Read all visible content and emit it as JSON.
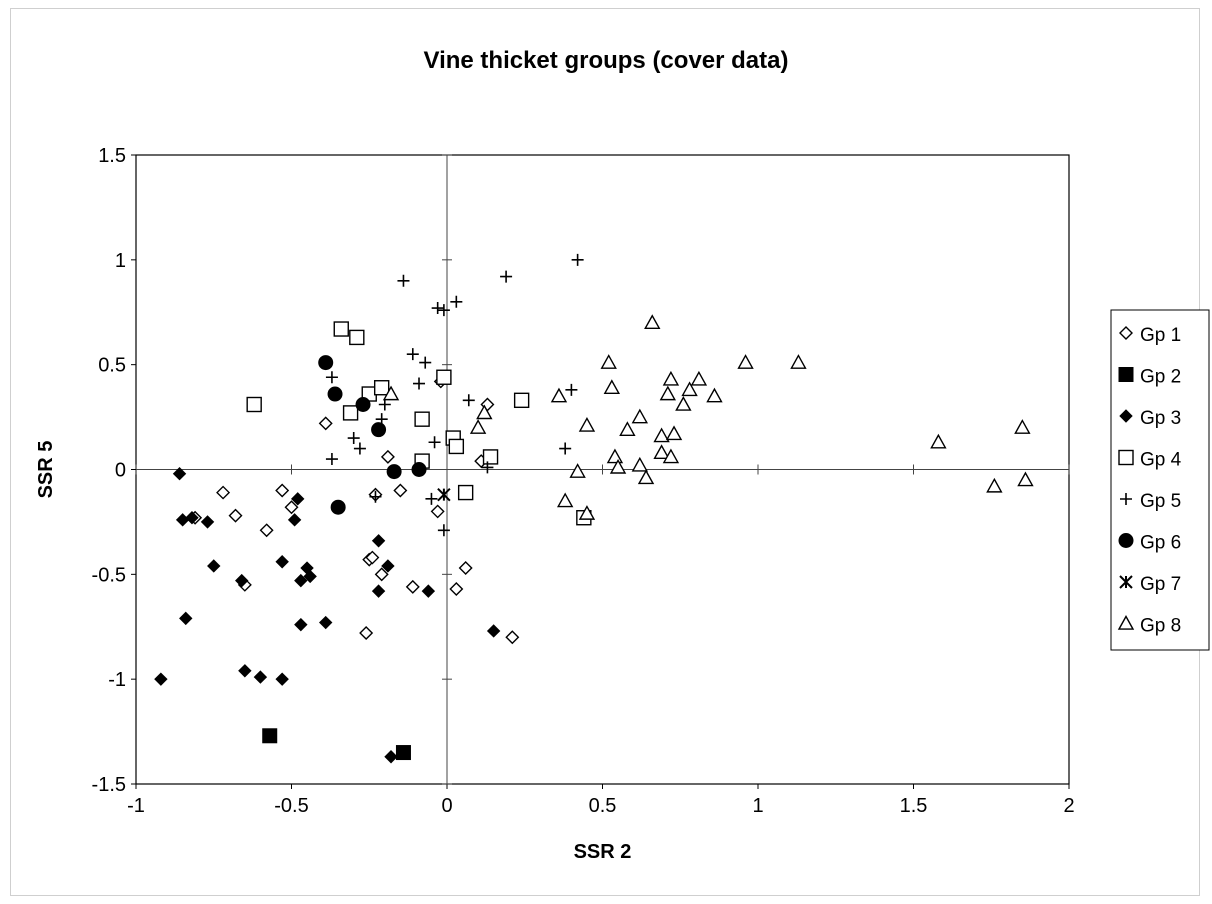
{
  "chart_data": {
    "type": "scatter",
    "title": "Vine thicket groups (cover data)",
    "xlabel": "SSR 2",
    "ylabel": "SSR 5",
    "xlim": [
      -1,
      2
    ],
    "ylim": [
      -1.5,
      1.5
    ],
    "xticks": [
      -1,
      -0.5,
      0,
      0.5,
      1,
      1.5,
      2
    ],
    "xtick_labels": [
      "-1",
      "-0.5",
      "0",
      "0.5",
      "1",
      "1.5",
      "2"
    ],
    "yticks": [
      -1.5,
      -1,
      -0.5,
      0,
      0.5,
      1,
      1.5
    ],
    "ytick_labels": [
      "-1.5",
      "-1",
      "-0.5",
      "0",
      "0.5",
      "1",
      "1.5"
    ],
    "grid": false,
    "legend_position": "right",
    "series": [
      {
        "name": "Gp 1",
        "marker": "diamond-open",
        "points": [
          [
            -0.81,
            -0.23
          ],
          [
            -0.72,
            -0.11
          ],
          [
            -0.68,
            -0.22
          ],
          [
            -0.65,
            -0.55
          ],
          [
            -0.58,
            -0.29
          ],
          [
            -0.53,
            -0.1
          ],
          [
            -0.5,
            -0.18
          ],
          [
            -0.39,
            0.22
          ],
          [
            -0.25,
            -0.43
          ],
          [
            -0.24,
            -0.42
          ],
          [
            -0.23,
            -0.12
          ],
          [
            -0.21,
            -0.5
          ],
          [
            -0.19,
            0.06
          ],
          [
            -0.15,
            -0.1
          ],
          [
            -0.11,
            -0.56
          ],
          [
            -0.03,
            -0.2
          ],
          [
            -0.02,
            0.42
          ],
          [
            0.03,
            -0.57
          ],
          [
            0.06,
            -0.47
          ],
          [
            0.11,
            0.04
          ],
          [
            0.13,
            0.31
          ],
          [
            0.21,
            -0.8
          ],
          [
            -0.26,
            -0.78
          ]
        ]
      },
      {
        "name": "Gp 2",
        "marker": "square-filled",
        "points": [
          [
            -0.57,
            -1.27
          ],
          [
            -0.14,
            -1.35
          ]
        ]
      },
      {
        "name": "Gp 3",
        "marker": "diamond-filled",
        "points": [
          [
            -0.92,
            -1.0
          ],
          [
            -0.86,
            -0.02
          ],
          [
            -0.85,
            -0.24
          ],
          [
            -0.84,
            -0.71
          ],
          [
            -0.82,
            -0.23
          ],
          [
            -0.77,
            -0.25
          ],
          [
            -0.75,
            -0.46
          ],
          [
            -0.66,
            -0.53
          ],
          [
            -0.65,
            -0.96
          ],
          [
            -0.6,
            -0.99
          ],
          [
            -0.53,
            -0.44
          ],
          [
            -0.53,
            -1.0
          ],
          [
            -0.49,
            -0.24
          ],
          [
            -0.48,
            -0.14
          ],
          [
            -0.47,
            -0.74
          ],
          [
            -0.47,
            -0.53
          ],
          [
            -0.45,
            -0.47
          ],
          [
            -0.44,
            -0.51
          ],
          [
            -0.39,
            -0.73
          ],
          [
            -0.22,
            -0.34
          ],
          [
            -0.22,
            -0.58
          ],
          [
            -0.19,
            -0.46
          ],
          [
            -0.06,
            -0.58
          ],
          [
            0.15,
            -0.77
          ],
          [
            -0.18,
            -1.37
          ]
        ]
      },
      {
        "name": "Gp 4",
        "marker": "square-open",
        "points": [
          [
            -0.62,
            0.31
          ],
          [
            -0.34,
            0.67
          ],
          [
            -0.31,
            0.27
          ],
          [
            -0.29,
            0.63
          ],
          [
            -0.25,
            0.36
          ],
          [
            -0.21,
            0.39
          ],
          [
            -0.08,
            0.24
          ],
          [
            -0.08,
            0.04
          ],
          [
            -0.01,
            0.44
          ],
          [
            0.02,
            0.15
          ],
          [
            0.03,
            0.11
          ],
          [
            0.06,
            -0.11
          ],
          [
            0.14,
            0.06
          ],
          [
            0.24,
            0.33
          ],
          [
            0.44,
            -0.23
          ]
        ]
      },
      {
        "name": "Gp 5",
        "marker": "plus",
        "points": [
          [
            -0.37,
            0.44
          ],
          [
            -0.37,
            0.05
          ],
          [
            -0.3,
            0.15
          ],
          [
            -0.28,
            0.1
          ],
          [
            -0.23,
            -0.13
          ],
          [
            -0.21,
            0.24
          ],
          [
            -0.2,
            0.31
          ],
          [
            -0.14,
            0.9
          ],
          [
            -0.11,
            0.55
          ],
          [
            -0.09,
            0.41
          ],
          [
            -0.07,
            0.51
          ],
          [
            -0.05,
            -0.14
          ],
          [
            -0.04,
            0.13
          ],
          [
            -0.03,
            0.77
          ],
          [
            -0.01,
            0.76
          ],
          [
            -0.01,
            -0.29
          ],
          [
            0.03,
            0.8
          ],
          [
            0.07,
            0.33
          ],
          [
            0.13,
            0.01
          ],
          [
            0.19,
            0.92
          ],
          [
            0.38,
            0.1
          ],
          [
            0.4,
            0.38
          ],
          [
            0.42,
            1.0
          ]
        ]
      },
      {
        "name": "Gp 6",
        "marker": "circle-filled",
        "points": [
          [
            -0.39,
            0.51
          ],
          [
            -0.36,
            0.36
          ],
          [
            -0.35,
            -0.18
          ],
          [
            -0.27,
            0.31
          ],
          [
            -0.22,
            0.19
          ],
          [
            -0.17,
            -0.01
          ],
          [
            -0.09,
            -0.0
          ]
        ]
      },
      {
        "name": "Gp 7",
        "marker": "star",
        "points": [
          [
            -0.01,
            -0.12
          ]
        ]
      },
      {
        "name": "Gp 8",
        "marker": "triangle-open",
        "points": [
          [
            -0.18,
            0.36
          ],
          [
            0.1,
            0.2
          ],
          [
            0.12,
            0.27
          ],
          [
            0.36,
            0.35
          ],
          [
            0.38,
            -0.15
          ],
          [
            0.42,
            -0.01
          ],
          [
            0.45,
            0.21
          ],
          [
            0.45,
            -0.21
          ],
          [
            0.52,
            0.51
          ],
          [
            0.53,
            0.39
          ],
          [
            0.54,
            0.06
          ],
          [
            0.55,
            0.01
          ],
          [
            0.58,
            0.19
          ],
          [
            0.62,
            0.25
          ],
          [
            0.62,
            0.02
          ],
          [
            0.64,
            -0.04
          ],
          [
            0.66,
            0.7
          ],
          [
            0.69,
            0.08
          ],
          [
            0.69,
            0.16
          ],
          [
            0.71,
            0.36
          ],
          [
            0.72,
            0.43
          ],
          [
            0.72,
            0.06
          ],
          [
            0.73,
            0.17
          ],
          [
            0.76,
            0.31
          ],
          [
            0.78,
            0.38
          ],
          [
            0.81,
            0.43
          ],
          [
            0.86,
            0.35
          ],
          [
            0.96,
            0.51
          ],
          [
            1.13,
            0.51
          ],
          [
            1.58,
            0.13
          ],
          [
            1.76,
            -0.08
          ],
          [
            1.85,
            0.2
          ],
          [
            1.86,
            -0.05
          ]
        ]
      }
    ]
  }
}
